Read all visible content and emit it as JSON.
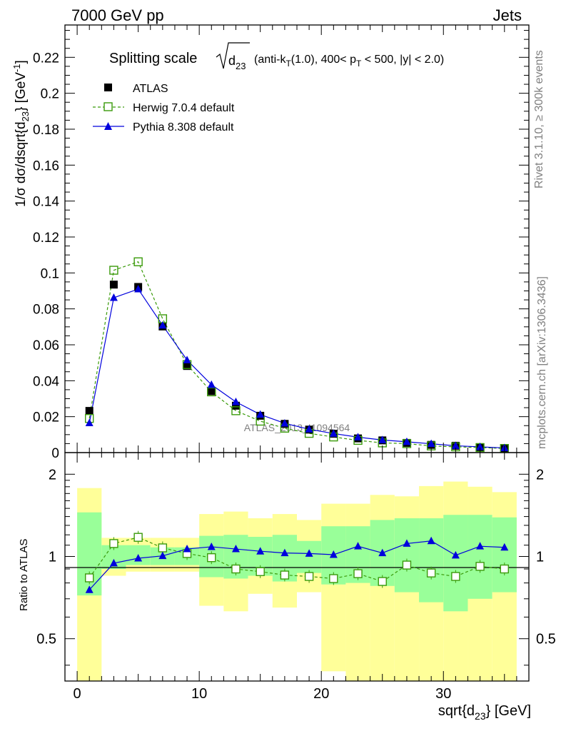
{
  "header": {
    "left": "7000 GeV pp",
    "right": "Jets"
  },
  "side_labels": {
    "rivet": "Rivet 3.1.10, ≥ 300k events",
    "mcplots": "mcplots.cern.ch [arXiv:1306.3436]"
  },
  "watermark": "ATLAS_2013_I1094564",
  "colors": {
    "atlas": "#000000",
    "herwig": "#3a9a0a",
    "pythia": "#0000dd",
    "band_outer": "#ffff99",
    "band_inner": "#99ff99"
  },
  "chart_data": [
    {
      "type": "scatter",
      "panel": "main",
      "title_main": "Splitting scale",
      "title_sqrt": "d",
      "title_sqrt_sub": "23",
      "title_rest": "(anti-k",
      "title_rest_sub": "T",
      "title_rest2": "(1.0), 400< p",
      "title_rest2_sub": "T",
      "title_rest3": " < 500, |y| < 2.0)",
      "ylabel": "1/σ dσ/dsqrt{d",
      "ylabel_sub": "23",
      "ylabel_end": "} [GeV",
      "ylabel_sup": "-1",
      "ylabel_close": "]",
      "ylim": [
        0,
        0.238
      ],
      "xlim": [
        -1,
        37
      ],
      "y_ticks": [
        "0",
        "0.02",
        "0.04",
        "0.06",
        "0.08",
        "0.1",
        "0.12",
        "0.14",
        "0.16",
        "0.18",
        "0.2",
        "0.22"
      ],
      "y_tick_values": [
        0,
        0.02,
        0.04,
        0.06,
        0.08,
        0.1,
        0.12,
        0.14,
        0.16,
        0.18,
        0.2,
        0.22
      ],
      "legend_position": "top-left",
      "x": [
        1,
        3,
        5,
        7,
        9,
        11,
        13,
        15,
        17,
        19,
        21,
        23,
        25,
        27,
        29,
        31,
        33,
        35
      ],
      "series": [
        {
          "name": "ATLAS",
          "marker": "filled-square",
          "values": [
            0.0232,
            0.0935,
            0.0922,
            0.0702,
            0.0482,
            0.0342,
            0.0261,
            0.0205,
            0.016,
            0.0128,
            0.0105,
            0.0079,
            0.0068,
            0.0054,
            0.0043,
            0.0038,
            0.003,
            0.0025
          ]
        },
        {
          "name": "Herwig 7.0.4 default",
          "marker": "open-square",
          "line": "dashed",
          "values": [
            0.019,
            0.1015,
            0.1062,
            0.0745,
            0.049,
            0.0338,
            0.0233,
            0.0175,
            0.0136,
            0.0107,
            0.0087,
            0.0068,
            0.0054,
            0.005,
            0.0037,
            0.0032,
            0.0028,
            0.0023
          ]
        },
        {
          "name": "Pythia 8.308 default",
          "marker": "filled-triangle",
          "line": "solid",
          "values": [
            0.0165,
            0.0862,
            0.091,
            0.0708,
            0.0515,
            0.0378,
            0.0282,
            0.0212,
            0.0163,
            0.013,
            0.0106,
            0.0086,
            0.007,
            0.006,
            0.0049,
            0.0038,
            0.0032,
            0.0026
          ]
        }
      ]
    },
    {
      "type": "scatter",
      "panel": "ratio",
      "ylabel": "Ratio to ATLAS",
      "xlabel": "sqrt{d",
      "xlabel_sub": "23",
      "xlabel_end": "} [GeV]",
      "scale": "log",
      "ylim": [
        0.35,
        2.4
      ],
      "xlim": [
        -1,
        37
      ],
      "x_ticks": [
        "0",
        "10",
        "20",
        "30"
      ],
      "x_tick_values": [
        0,
        10,
        20,
        30
      ],
      "y_ticks": [
        "0.5",
        "1",
        "2"
      ],
      "y_tick_values": [
        0.5,
        1,
        2
      ],
      "bins": [
        [
          0,
          2
        ],
        [
          2,
          4
        ],
        [
          4,
          6
        ],
        [
          6,
          8
        ],
        [
          8,
          10
        ],
        [
          10,
          12
        ],
        [
          12,
          14
        ],
        [
          14,
          16
        ],
        [
          16,
          18
        ],
        [
          18,
          20
        ],
        [
          20,
          22
        ],
        [
          22,
          24
        ],
        [
          24,
          26
        ],
        [
          26,
          28
        ],
        [
          28,
          30
        ],
        [
          30,
          32
        ],
        [
          32,
          34
        ],
        [
          34,
          36
        ]
      ],
      "band_outer": [
        [
          0.35,
          1.78
        ],
        [
          0.85,
          1.17
        ],
        [
          0.88,
          1.17
        ],
        [
          0.88,
          1.17
        ],
        [
          0.88,
          1.17
        ],
        [
          0.66,
          1.43
        ],
        [
          0.63,
          1.46
        ],
        [
          0.73,
          1.38
        ],
        [
          0.65,
          1.43
        ],
        [
          0.74,
          1.36
        ],
        [
          0.38,
          1.56
        ],
        [
          0.35,
          1.56
        ],
        [
          0.35,
          1.68
        ],
        [
          0.35,
          1.66
        ],
        [
          0.35,
          1.81
        ],
        [
          0.35,
          1.88
        ],
        [
          0.35,
          1.8
        ],
        [
          0.35,
          1.72
        ]
      ],
      "band_inner": [
        [
          0.72,
          1.45
        ],
        [
          0.9,
          1.1
        ],
        [
          0.93,
          1.1
        ],
        [
          0.93,
          1.08
        ],
        [
          0.93,
          1.08
        ],
        [
          0.84,
          1.19
        ],
        [
          0.83,
          1.2
        ],
        [
          0.85,
          1.18
        ],
        [
          0.81,
          1.2
        ],
        [
          0.87,
          1.14
        ],
        [
          0.79,
          1.29
        ],
        [
          0.8,
          1.29
        ],
        [
          0.78,
          1.36
        ],
        [
          0.74,
          1.38
        ],
        [
          0.68,
          1.38
        ],
        [
          0.63,
          1.42
        ],
        [
          0.7,
          1.42
        ],
        [
          0.74,
          1.39
        ]
      ],
      "series": [
        {
          "name": "Herwig 7.0.4 default",
          "values": [
            0.835,
            1.115,
            1.175,
            1.075,
            1.025,
            0.99,
            0.9,
            0.88,
            0.855,
            0.845,
            0.83,
            0.865,
            0.81,
            0.93,
            0.87,
            0.845,
            0.92,
            0.9
          ]
        },
        {
          "name": "Pythia 8.308 default",
          "values": [
            0.755,
            0.945,
            0.985,
            1.005,
            1.065,
            1.085,
            1.065,
            1.045,
            1.03,
            1.025,
            1.015,
            1.09,
            1.03,
            1.115,
            1.14,
            1.01,
            1.09,
            1.08
          ]
        }
      ]
    }
  ]
}
